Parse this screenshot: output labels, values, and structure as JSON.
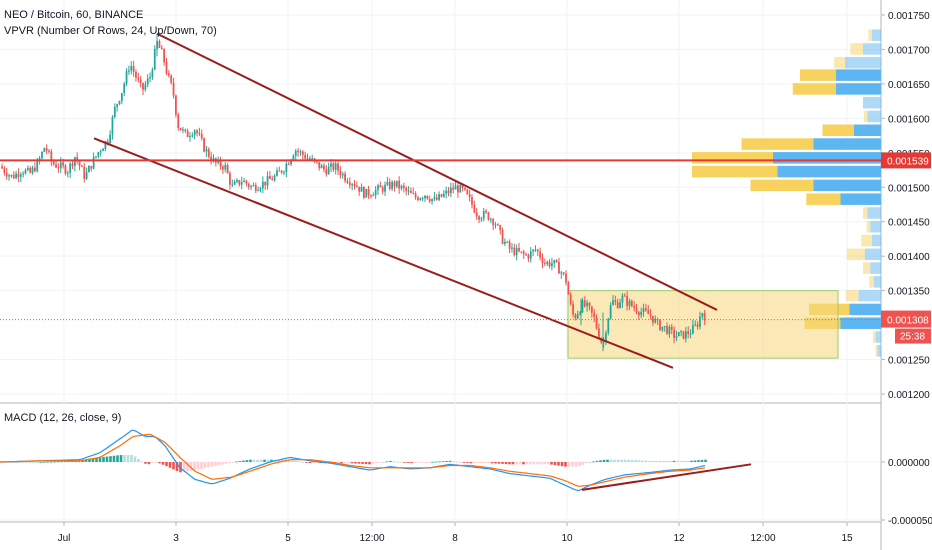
{
  "main_legend": {
    "symbol_line": "NEO / Bitcoin, 60, BINANCE",
    "indicator_line": "VPVR (Number Of Rows, 24, Up/Down, 70)"
  },
  "macd_legend": "MACD (12, 26, close, 9)",
  "price_axis_labels": [
    "0.001750",
    "0.001700",
    "0.001650",
    "0.001600",
    "0.001550",
    "0.001500",
    "0.001450",
    "0.001400",
    "0.001350",
    "0.001250",
    "0.001200"
  ],
  "macd_axis_labels": [
    "0.000000",
    "-0.000050"
  ],
  "time_axis_labels": [
    "Jul",
    "3",
    "5",
    "12:00",
    "8",
    "10",
    "12",
    "12:00",
    "15"
  ],
  "badges": {
    "resistance_price": "0.001539",
    "last_price": "0.001308",
    "countdown": "25:38"
  },
  "colors": {
    "up": "#26a69a",
    "down": "#ef5350",
    "trendline": "#9b1c1c",
    "horizontal_level": "#e53935",
    "consolidation_box": "#f5d77a",
    "vp_up": "#5db6f2",
    "vp_down": "#f7d25f",
    "macd_line": "#2196f3",
    "signal_line": "#ff6d00"
  },
  "chart_data": [
    {
      "type": "candlestick",
      "title": "NEO / Bitcoin, 60, BINANCE",
      "ylim": [
        0.00119,
        0.00176
      ],
      "y_ticks": [
        0.0012,
        0.00125,
        0.00135,
        0.0014,
        0.00145,
        0.0015,
        0.00155,
        0.0016,
        0.00165,
        0.0017,
        0.00175
      ],
      "x_ticks": [
        "Jul",
        "3",
        "5",
        "12:00",
        "8",
        "10",
        "12",
        "12:00",
        "15"
      ],
      "close_path": [
        [
          0,
          0.00153
        ],
        [
          12,
          0.001515
        ],
        [
          22,
          0.001525
        ],
        [
          30,
          0.00152
        ],
        [
          38,
          0.001535
        ],
        [
          45,
          0.00156
        ],
        [
          52,
          0.001535
        ],
        [
          60,
          0.00153
        ],
        [
          68,
          0.001525
        ],
        [
          75,
          0.001545
        ],
        [
          85,
          0.001515
        ],
        [
          92,
          0.001535
        ],
        [
          100,
          0.001555
        ],
        [
          108,
          0.00157
        ],
        [
          115,
          0.001615
        ],
        [
          122,
          0.00164
        ],
        [
          130,
          0.00168
        ],
        [
          136,
          0.00166
        ],
        [
          142,
          0.00164
        ],
        [
          150,
          0.00166
        ],
        [
          157,
          0.00171
        ],
        [
          163,
          0.00169
        ],
        [
          168,
          0.00166
        ],
        [
          173,
          0.00164
        ],
        [
          178,
          0.00159
        ],
        [
          186,
          0.001575
        ],
        [
          195,
          0.001585
        ],
        [
          205,
          0.001555
        ],
        [
          215,
          0.001535
        ],
        [
          225,
          0.00153
        ],
        [
          232,
          0.0015
        ],
        [
          242,
          0.00151
        ],
        [
          252,
          0.0015
        ],
        [
          262,
          0.001505
        ],
        [
          275,
          0.001515
        ],
        [
          285,
          0.00153
        ],
        [
          295,
          0.001555
        ],
        [
          305,
          0.001545
        ],
        [
          315,
          0.001535
        ],
        [
          325,
          0.001525
        ],
        [
          335,
          0.00153
        ],
        [
          345,
          0.001515
        ],
        [
          355,
          0.001505
        ],
        [
          365,
          0.00149
        ],
        [
          375,
          0.001495
        ],
        [
          385,
          0.0015
        ],
        [
          395,
          0.001505
        ],
        [
          405,
          0.001495
        ],
        [
          415,
          0.001485
        ],
        [
          425,
          0.00149
        ],
        [
          435,
          0.00148
        ],
        [
          445,
          0.00149
        ],
        [
          455,
          0.0015
        ],
        [
          463,
          0.001495
        ],
        [
          470,
          0.00148
        ],
        [
          478,
          0.00146
        ],
        [
          487,
          0.00146
        ],
        [
          495,
          0.00145
        ],
        [
          502,
          0.001425
        ],
        [
          510,
          0.00141
        ],
        [
          518,
          0.001405
        ],
        [
          527,
          0.0014
        ],
        [
          536,
          0.00141
        ],
        [
          545,
          0.00139
        ],
        [
          553,
          0.00139
        ],
        [
          560,
          0.00138
        ],
        [
          566,
          0.001365
        ],
        [
          570,
          0.00133
        ],
        [
          574,
          0.00131
        ],
        [
          578,
          0.00132
        ],
        [
          582,
          0.00133
        ],
        [
          588,
          0.001325
        ],
        [
          594,
          0.00131
        ],
        [
          598,
          0.00129
        ],
        [
          603,
          0.00127
        ],
        [
          607,
          0.001305
        ],
        [
          612,
          0.001335
        ],
        [
          617,
          0.00133
        ],
        [
          622,
          0.00134
        ],
        [
          630,
          0.00133
        ],
        [
          640,
          0.00132
        ],
        [
          650,
          0.001315
        ],
        [
          658,
          0.0013
        ],
        [
          666,
          0.001295
        ],
        [
          674,
          0.001285
        ],
        [
          682,
          0.001285
        ],
        [
          690,
          0.00129
        ],
        [
          697,
          0.0013
        ],
        [
          702,
          0.00132
        ],
        [
          707,
          0.001308
        ]
      ],
      "volume_profile_rows": [
        {
          "price": 0.00172,
          "up": 10,
          "down": 4
        },
        {
          "price": 0.0017,
          "up": 20,
          "down": 14
        },
        {
          "price": 0.00168,
          "up": 40,
          "down": 12
        },
        {
          "price": 0.001662,
          "up": 50,
          "down": 40
        },
        {
          "price": 0.001642,
          "up": 50,
          "down": 48
        },
        {
          "price": 0.001622,
          "up": 20,
          "down": 0
        },
        {
          "price": 0.001602,
          "up": 15,
          "down": 4
        },
        {
          "price": 0.001582,
          "up": 30,
          "down": 35
        },
        {
          "price": 0.001562,
          "up": 75,
          "down": 80
        },
        {
          "price": 0.001542,
          "up": 120,
          "down": 90
        },
        {
          "price": 0.001522,
          "up": 115,
          "down": 95
        },
        {
          "price": 0.001502,
          "up": 75,
          "down": 70
        },
        {
          "price": 0.001482,
          "up": 45,
          "down": 38
        },
        {
          "price": 0.001462,
          "up": 15,
          "down": 5
        },
        {
          "price": 0.001442,
          "up": 12,
          "down": 4
        },
        {
          "price": 0.001422,
          "up": 10,
          "down": 12
        },
        {
          "price": 0.001402,
          "up": 18,
          "down": 20
        },
        {
          "price": 0.001382,
          "up": 12,
          "down": 8
        },
        {
          "price": 0.001362,
          "up": 8,
          "down": 5
        },
        {
          "price": 0.001342,
          "up": 25,
          "down": 14
        },
        {
          "price": 0.001322,
          "up": 35,
          "down": 45
        },
        {
          "price": 0.001302,
          "up": 45,
          "down": 40
        },
        {
          "price": 0.001282,
          "up": 6,
          "down": 3
        },
        {
          "price": 0.001262,
          "up": 4,
          "down": 2
        }
      ],
      "horizontal_level": 0.001539,
      "last_price": 0.001308,
      "drawings": {
        "channel_upper": [
          [
            157,
            0.001723
          ],
          [
            717,
            0.001322
          ]
        ],
        "channel_lower": [
          [
            94,
            0.001571
          ],
          [
            673,
            0.001238
          ]
        ],
        "consolidation_box": {
          "x_start": 568,
          "x_end": 838,
          "price_top": 0.00135,
          "price_bottom": 0.001252
        }
      }
    },
    {
      "type": "line",
      "title": "MACD (12, 26, close, 9)",
      "ylim": [
        -6e-05,
        3e-05
      ],
      "y_ticks": [
        0.0,
        -5e-05
      ],
      "series": [
        {
          "name": "MACD",
          "points": [
            [
              0,
              0.0
            ],
            [
              40,
              1e-06
            ],
            [
              80,
              2e-06
            ],
            [
              100,
              8e-06
            ],
            [
              120,
              2e-05
            ],
            [
              133,
              2.8e-05
            ],
            [
              145,
              2.2e-05
            ],
            [
              155,
              2.2e-05
            ],
            [
              165,
              1.4e-05
            ],
            [
              180,
              -5e-06
            ],
            [
              195,
              -1.5e-05
            ],
            [
              212,
              -1.9e-05
            ],
            [
              230,
              -1.4e-05
            ],
            [
              250,
              -6e-06
            ],
            [
              270,
              0.0
            ],
            [
              290,
              4e-06
            ],
            [
              310,
              1e-06
            ],
            [
              330,
              -1e-06
            ],
            [
              350,
              -4e-06
            ],
            [
              370,
              -7e-06
            ],
            [
              390,
              -4e-06
            ],
            [
              410,
              -6e-06
            ],
            [
              430,
              -5e-06
            ],
            [
              450,
              -2e-06
            ],
            [
              470,
              -4e-06
            ],
            [
              490,
              -6e-06
            ],
            [
              510,
              -1e-05
            ],
            [
              530,
              -1.2e-05
            ],
            [
              550,
              -1.4e-05
            ],
            [
              565,
              -2e-05
            ],
            [
              578,
              -2.5e-05
            ],
            [
              590,
              -2e-05
            ],
            [
              605,
              -1.5e-05
            ],
            [
              625,
              -1.1e-05
            ],
            [
              650,
              -9e-06
            ],
            [
              670,
              -7e-06
            ],
            [
              690,
              -6e-06
            ],
            [
              705,
              -3e-06
            ]
          ]
        },
        {
          "name": "Signal",
          "points": [
            [
              0,
              0.0
            ],
            [
              40,
              1e-06
            ],
            [
              80,
              1e-06
            ],
            [
              100,
              4e-06
            ],
            [
              120,
              1.4e-05
            ],
            [
              133,
              2.2e-05
            ],
            [
              150,
              2.4e-05
            ],
            [
              165,
              1.7e-05
            ],
            [
              180,
              4e-06
            ],
            [
              195,
              -8e-06
            ],
            [
              212,
              -1.5e-05
            ],
            [
              232,
              -1.3e-05
            ],
            [
              250,
              -8e-06
            ],
            [
              270,
              -2e-06
            ],
            [
              290,
              2e-06
            ],
            [
              310,
              2e-06
            ],
            [
              330,
              0.0
            ],
            [
              350,
              -3e-06
            ],
            [
              370,
              -5e-06
            ],
            [
              390,
              -5e-06
            ],
            [
              410,
              -5e-06
            ],
            [
              430,
              -5e-06
            ],
            [
              450,
              -3e-06
            ],
            [
              470,
              -3e-06
            ],
            [
              490,
              -5e-06
            ],
            [
              510,
              -8e-06
            ],
            [
              530,
              -1e-05
            ],
            [
              550,
              -1.2e-05
            ],
            [
              565,
              -1.6e-05
            ],
            [
              578,
              -2.1e-05
            ],
            [
              590,
              -2e-05
            ],
            [
              605,
              -1.7e-05
            ],
            [
              625,
              -1.3e-05
            ],
            [
              650,
              -1e-05
            ],
            [
              670,
              -8e-06
            ],
            [
              690,
              -7e-06
            ],
            [
              705,
              -5e-06
            ]
          ]
        }
      ],
      "drawings": {
        "trendline": [
          [
            582,
            -2.4e-05
          ],
          [
            751,
            -2e-06
          ]
        ]
      }
    }
  ]
}
